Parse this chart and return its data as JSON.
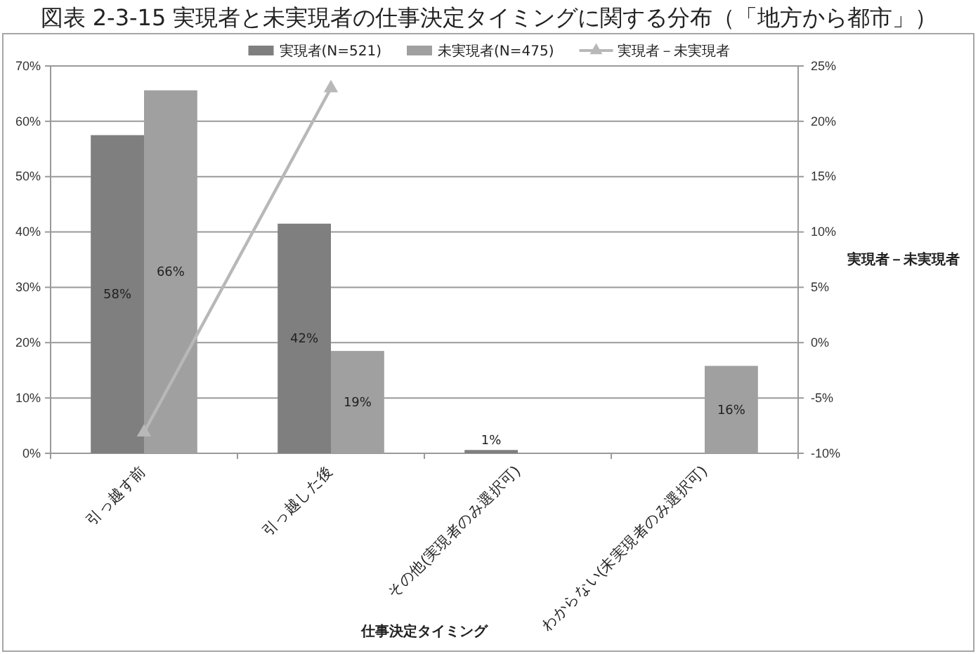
{
  "chart_data": {
    "type": "bar",
    "title": "図表 2-3-15 実現者と未実現者の仕事決定タイミングに関する分布（「地方から都市」）",
    "xlabel": "仕事決定タイミング",
    "y2label": "実現者－未実現者",
    "categories": [
      "引っ越す前",
      "引っ越した後",
      "その他(実現者のみ選択可)",
      "わからない(未実現者のみ選択可)"
    ],
    "series": [
      {
        "name": "実現者(N=521)",
        "color": "#7f7f7f",
        "values": [
          57.5,
          41.5,
          0.6,
          null
        ],
        "value_labels": [
          "58%",
          "42%",
          "1%",
          null
        ]
      },
      {
        "name": "未実現者(N=475)",
        "color": "#a0a0a0",
        "values": [
          65.6,
          18.5,
          null,
          15.8
        ],
        "value_labels": [
          "66%",
          "19%",
          null,
          "16%"
        ]
      },
      {
        "name": "実現者－未実現者",
        "type": "line",
        "axis": "y2",
        "color": "#b8b8b8",
        "marker": "triangle",
        "values": [
          -8.1,
          23.0,
          null,
          null
        ]
      }
    ],
    "ylim": [
      0,
      70
    ],
    "yticks": [
      {
        "value": 0,
        "label": "0%"
      },
      {
        "value": 10,
        "label": "10%"
      },
      {
        "value": 20,
        "label": "20%"
      },
      {
        "value": 30,
        "label": "30%"
      },
      {
        "value": 40,
        "label": "40%"
      },
      {
        "value": 50,
        "label": "50%"
      },
      {
        "value": 60,
        "label": "60%"
      },
      {
        "value": 70,
        "label": "70%"
      }
    ],
    "y2lim": [
      -10,
      25
    ],
    "y2ticks": [
      {
        "value": -10,
        "label": "-10%"
      },
      {
        "value": -5,
        "label": "-5%"
      },
      {
        "value": 0,
        "label": "0%"
      },
      {
        "value": 5,
        "label": "5%"
      },
      {
        "value": 10,
        "label": "10%"
      },
      {
        "value": 15,
        "label": "15%"
      },
      {
        "value": 20,
        "label": "20%"
      },
      {
        "value": 25,
        "label": "25%"
      }
    ],
    "grid": "y",
    "legend": "top"
  }
}
